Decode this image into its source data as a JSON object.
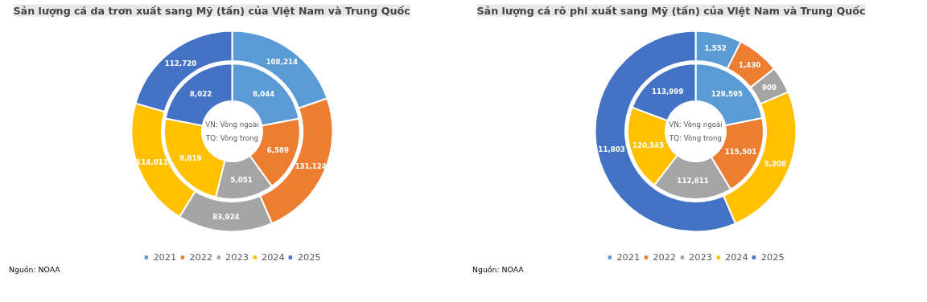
{
  "chart_data": [
    {
      "type": "donut",
      "title": "Sản lượng cá da trơn xuất sang Mỹ (tấn) của Việt Nam và Trung Quốc",
      "categories": [
        "2021",
        "2022",
        "2023",
        "2024",
        "2025"
      ],
      "colors": [
        "#5b9bd5",
        "#ed7d31",
        "#a5a5a5",
        "#ffc000",
        "#4472c4"
      ],
      "series": [
        {
          "values": [
            108214,
            131124,
            83924,
            114011,
            112720
          ],
          "value_labels": [
            "108,214",
            "131,124",
            "83,924",
            "114,011",
            "112,720"
          ]
        },
        {
          "values": [
            8044,
            6589,
            5051,
            8819,
            8022
          ],
          "value_labels": [
            "8,044",
            "6,589",
            "5,051",
            "8,819",
            "8,022"
          ]
        }
      ],
      "legend": "bottom",
      "annotations": [
        "VN: Vòng ngoài",
        "TQ: Vòng trong",
        "Nguồn: NOAA"
      ]
    },
    {
      "type": "donut",
      "title": "Sản lượng cá rô phi xuất sang Mỹ (tấn) của Việt Nam và Trung Quốc",
      "categories": [
        "2021",
        "2022",
        "2023",
        "2024",
        "2025"
      ],
      "colors": [
        "#5b9bd5",
        "#ed7d31",
        "#a5a5a5",
        "#ffc000",
        "#4472c4"
      ],
      "series": [
        {
          "values": [
            1552,
            1430,
            909,
            5208,
            11803
          ],
          "value_labels": [
            "1,552",
            "1,430",
            "909",
            "5,208",
            "11,803"
          ]
        },
        {
          "values": [
            129595,
            115501,
            112811,
            120545,
            113999
          ],
          "value_labels": [
            "129,595",
            "115,501",
            "112,811",
            "120,545",
            "113,999"
          ]
        }
      ],
      "legend": "bottom",
      "annotations": [
        "VN: Vòng ngoài",
        "TQ: Vòng trong",
        "Nguồn: NOAA"
      ]
    }
  ]
}
